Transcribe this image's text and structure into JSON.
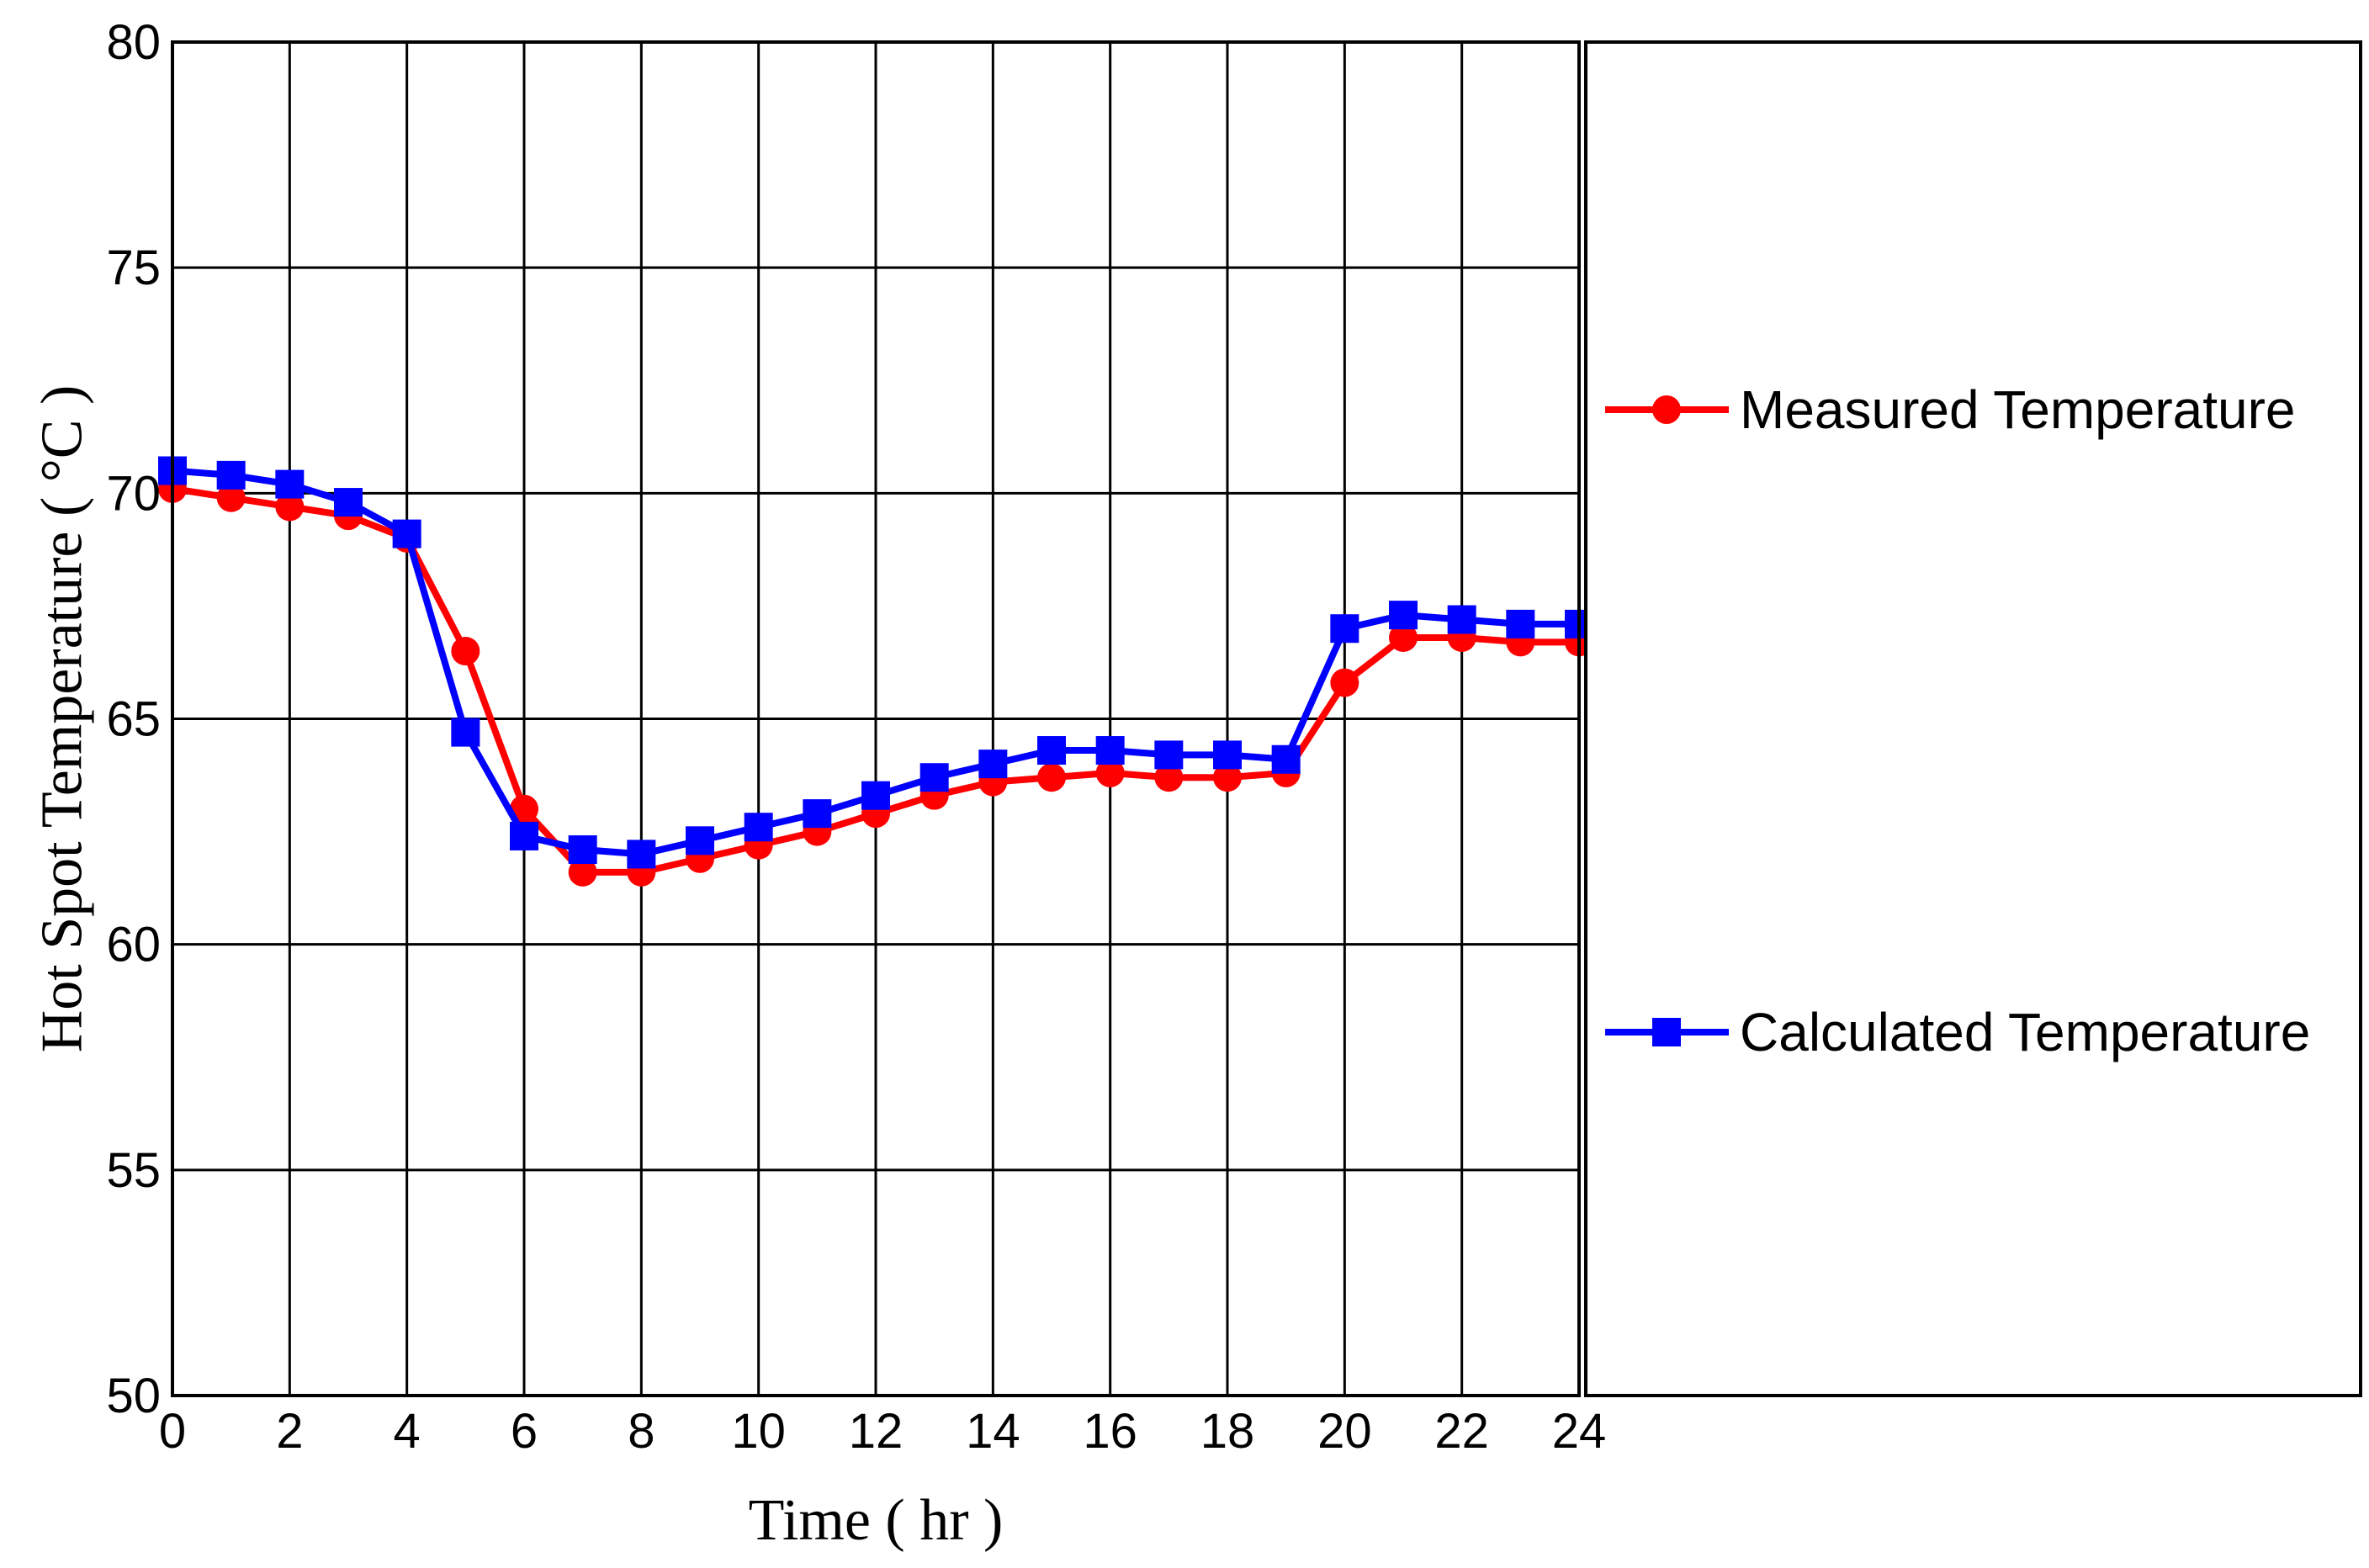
{
  "chart_data": {
    "type": "line",
    "title": "",
    "xlabel": "Time ( hr )",
    "ylabel": "Hot Spot Temperature ( °C )",
    "xlim": [
      0,
      24
    ],
    "ylim": [
      50,
      80
    ],
    "x_ticks": [
      0,
      2,
      4,
      6,
      8,
      10,
      12,
      14,
      16,
      18,
      20,
      22,
      24
    ],
    "y_ticks": [
      50,
      55,
      60,
      65,
      70,
      75,
      80
    ],
    "grid": true,
    "legend_position": "right",
    "x": [
      0,
      1,
      2,
      3,
      4,
      5,
      6,
      7,
      8,
      9,
      10,
      11,
      12,
      13,
      14,
      15,
      16,
      17,
      18,
      19,
      20,
      21,
      22,
      23,
      24
    ],
    "series": [
      {
        "name": "Measured Temperature",
        "color": "#ff0000",
        "marker": "circle",
        "values": [
          70.1,
          69.9,
          69.7,
          69.5,
          69.0,
          66.5,
          63.0,
          61.6,
          61.6,
          61.9,
          62.2,
          62.5,
          62.9,
          63.3,
          63.6,
          63.7,
          63.8,
          63.7,
          63.7,
          63.8,
          65.8,
          66.8,
          66.8,
          66.7,
          66.7
        ]
      },
      {
        "name": "Calculated Temperature",
        "color": "#0000ff",
        "marker": "square",
        "values": [
          70.5,
          70.4,
          70.2,
          69.8,
          69.1,
          64.7,
          62.4,
          62.1,
          62.0,
          62.3,
          62.6,
          62.9,
          63.3,
          63.7,
          64.0,
          64.3,
          64.3,
          64.2,
          64.2,
          64.1,
          67.0,
          67.3,
          67.2,
          67.1,
          67.1
        ]
      }
    ]
  }
}
